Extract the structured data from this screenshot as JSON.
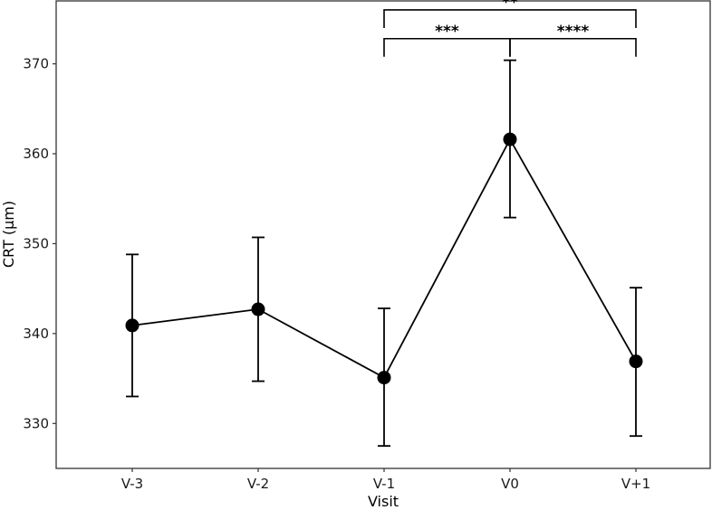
{
  "chart_data": {
    "type": "line",
    "title": "",
    "xlabel": "Visit",
    "ylabel": "CRT (µm)",
    "categories": [
      "V-3",
      "V-2",
      "V-1",
      "V0",
      "V+1"
    ],
    "series": [
      {
        "values": [
          340.9,
          342.7,
          335.1,
          361.6,
          336.9
        ],
        "error_low": [
          333.0,
          334.7,
          327.5,
          352.9,
          328.6
        ],
        "error_high": [
          348.8,
          350.7,
          342.8,
          370.4,
          345.1
        ]
      }
    ],
    "ylim": [
      325.0,
      377.0
    ],
    "yticks": [
      330,
      340,
      350,
      360,
      370
    ],
    "grid": false,
    "significance": [
      {
        "from": "V-1",
        "to": "V0",
        "label": "***",
        "bracket_y": 372.8
      },
      {
        "from": "V0",
        "to": "V+1",
        "label": "****",
        "bracket_y": 372.8
      },
      {
        "from": "V-1",
        "to": "V+1",
        "label": "**",
        "bracket_y": 376.0
      }
    ],
    "colors": {
      "line": "#000000",
      "marker": "#000000",
      "axis": "#333333"
    }
  }
}
